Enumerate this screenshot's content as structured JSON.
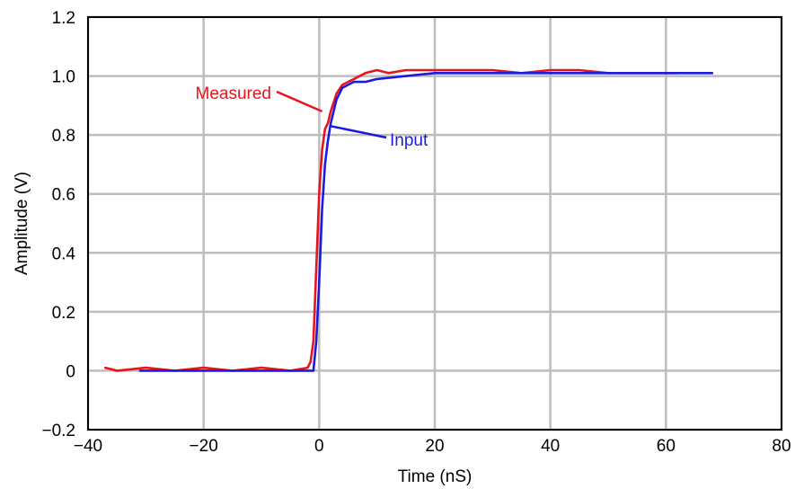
{
  "chart_data": {
    "type": "line",
    "title": "",
    "xlabel": "Time (nS)",
    "ylabel": "Amplitude (V)",
    "xlim": [
      -40,
      80
    ],
    "ylim": [
      -0.2,
      1.2
    ],
    "xticks": [
      -40,
      -20,
      0,
      20,
      40,
      60,
      80
    ],
    "yticks": [
      -0.2,
      0,
      0.2,
      0.4,
      0.6,
      0.8,
      1.0,
      1.2
    ],
    "xtick_labels": [
      "−40",
      "−20",
      "0",
      "20",
      "40",
      "60",
      "80"
    ],
    "ytick_labels": [
      "−0.2",
      "0",
      "0.2",
      "0.4",
      "0.6",
      "0.8",
      "1.0",
      "1.2"
    ],
    "grid": true,
    "series": [
      {
        "name": "Measured",
        "color": "#e8141c",
        "x": [
          -37,
          -35,
          -30,
          -25,
          -20,
          -15,
          -10,
          -5,
          -2,
          -1.5,
          -1,
          -0.5,
          0,
          0.5,
          1,
          1.5,
          2,
          3,
          4,
          5,
          6,
          8,
          10,
          12,
          15,
          20,
          25,
          30,
          35,
          40,
          45,
          50,
          55,
          60,
          62
        ],
        "y": [
          0.01,
          0.0,
          0.01,
          0.0,
          0.01,
          0.0,
          0.01,
          0.0,
          0.01,
          0.03,
          0.1,
          0.35,
          0.6,
          0.75,
          0.82,
          0.84,
          0.88,
          0.94,
          0.97,
          0.98,
          0.99,
          1.01,
          1.02,
          1.01,
          1.02,
          1.02,
          1.02,
          1.02,
          1.01,
          1.02,
          1.02,
          1.01,
          1.01,
          1.01,
          1.01
        ]
      },
      {
        "name": "Input",
        "color": "#1b1be0",
        "x": [
          -31,
          -30,
          -25,
          -20,
          -15,
          -10,
          -5,
          -2,
          -1,
          -0.5,
          0,
          0.5,
          1,
          1.5,
          2,
          3,
          4,
          5,
          6,
          8,
          10,
          15,
          20,
          30,
          40,
          50,
          60,
          65,
          68
        ],
        "y": [
          0.0,
          0.0,
          0.0,
          0.0,
          0.0,
          0.0,
          0.0,
          0.0,
          0.0,
          0.1,
          0.3,
          0.55,
          0.7,
          0.78,
          0.84,
          0.92,
          0.96,
          0.97,
          0.98,
          0.98,
          0.99,
          1.0,
          1.01,
          1.01,
          1.01,
          1.01,
          1.01,
          1.01,
          1.01
        ]
      }
    ],
    "annotations": [
      {
        "text": "Measured",
        "series": "Measured",
        "x": 0.5,
        "y": 0.88,
        "color": "#e8141c"
      },
      {
        "text": "Input",
        "series": "Input",
        "x": 2.0,
        "y": 0.83,
        "color": "#1b1be0"
      }
    ]
  }
}
